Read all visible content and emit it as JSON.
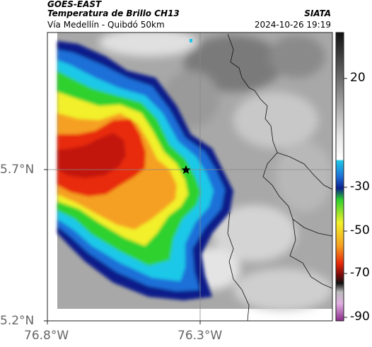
{
  "header": {
    "satellite": "GOES-EAST",
    "product": "Temperatura de Brillo CH13",
    "region": "Vía Medellín - Quibdó 50km",
    "source": "SIATA",
    "timestamp": "2024-10-26 19:19"
  },
  "map": {
    "lat_labels": [
      "5.7°N",
      "5.2°N"
    ],
    "lon_labels": [
      "76.8°W",
      "76.3°W"
    ],
    "marker": "star-marker",
    "colors": {
      "gray_background": "#a9a9a9",
      "navy": "#0b1f8a",
      "blue": "#1e6fd8",
      "cyan": "#1ec8e8",
      "green": "#2ed12e",
      "yellow": "#f2f02a",
      "orange": "#f5a020",
      "red": "#e82a0a"
    }
  },
  "colorbar": {
    "labels": [
      "20",
      "-30",
      "-50",
      "-70",
      "-90"
    ]
  }
}
